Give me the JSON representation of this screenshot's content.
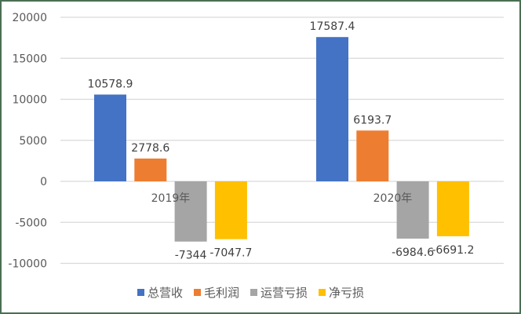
{
  "chart_data": {
    "type": "bar",
    "title": "",
    "xlabel": "",
    "ylabel": "",
    "categories": [
      "2019年",
      "2020年"
    ],
    "series": [
      {
        "name": "总营收",
        "color": "#4472c4",
        "values": [
          10578.9,
          17587.4
        ],
        "labels": [
          "10578.9",
          "17587.4"
        ]
      },
      {
        "name": "毛利润",
        "color": "#ed7d31",
        "values": [
          2778.6,
          6193.7
        ],
        "labels": [
          "2778.6",
          "6193.7"
        ]
      },
      {
        "name": "运营亏损",
        "color": "#a5a5a5",
        "values": [
          -7344,
          -6984.6
        ],
        "labels": [
          "-7344",
          "-6984.6"
        ]
      },
      {
        "name": "净亏损",
        "color": "#ffc000",
        "values": [
          -7047.7,
          -6691.2
        ],
        "labels": [
          "-7047.7",
          "-6691.2"
        ]
      }
    ],
    "ylim": [
      -10000,
      20000
    ],
    "yticks": [
      "20000",
      "15000",
      "10000",
      "5000",
      "0",
      "-5000",
      "-10000"
    ],
    "grid": true,
    "legend_position": "bottom"
  },
  "legend": {
    "items": [
      {
        "label": "总营收",
        "color": "#4472c4"
      },
      {
        "label": "毛利润",
        "color": "#ed7d31"
      },
      {
        "label": "运营亏损",
        "color": "#a5a5a5"
      },
      {
        "label": "净亏损",
        "color": "#ffc000"
      }
    ]
  }
}
